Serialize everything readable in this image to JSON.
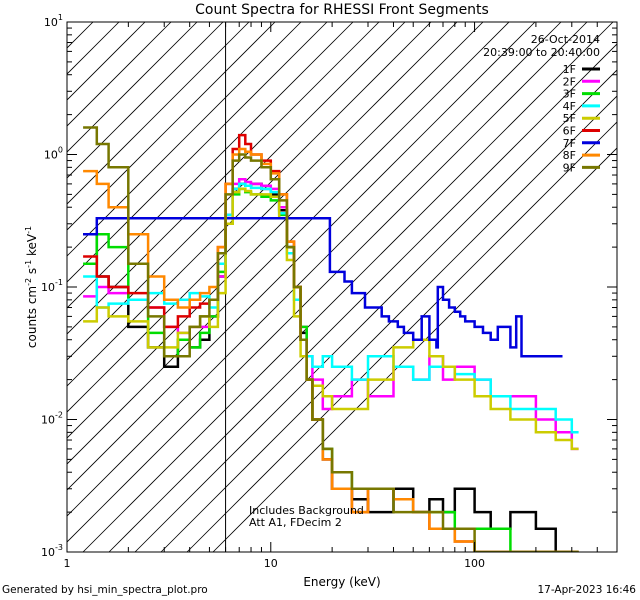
{
  "chart_data": {
    "type": "line",
    "title": "Count Spectra for RHESSI Front Segments",
    "xlabel": "Energy (keV)",
    "ylabel_parts": [
      "counts cm",
      "-2",
      " s",
      "-1",
      " keV",
      "-1"
    ],
    "xscale": "log",
    "yscale": "log",
    "xlim": [
      1,
      500
    ],
    "ylim": [
      0.001,
      10
    ],
    "x_ticks": [
      {
        "value": 1,
        "label": "1"
      },
      {
        "value": 10,
        "label": "10"
      },
      {
        "value": 100,
        "label": "100"
      }
    ],
    "y_ticks": [
      {
        "value": 0.001,
        "base": "10",
        "exp": "-3"
      },
      {
        "value": 0.01,
        "base": "10",
        "exp": "-2"
      },
      {
        "value": 0.1,
        "base": "10",
        "exp": "-1"
      },
      {
        "value": 1,
        "base": "10",
        "exp": "0"
      },
      {
        "value": 10,
        "base": "10",
        "exp": "1"
      }
    ],
    "date": "26-Oct-2014",
    "time_range": "20:39:00 to 20:40:00",
    "shaded_region": {
      "x_from": 1,
      "x_to": 6
    },
    "annotations": [
      "Includes Background",
      "Att A1, FDecim 2"
    ],
    "series": [
      {
        "name": "1F",
        "color": "#000000",
        "x": [
          1.2,
          1.4,
          1.6,
          2.0,
          2.5,
          3.0,
          3.5,
          4.0,
          4.5,
          5.0,
          5.5,
          6.0,
          6.5,
          7.0,
          7.5,
          8.0,
          9.0,
          10,
          11,
          12,
          13,
          14,
          15,
          16,
          18,
          20,
          25,
          30,
          40,
          50,
          60,
          70,
          80,
          100,
          120,
          150,
          200,
          250,
          300
        ],
        "y": [
          0.25,
          0.12,
          0.1,
          0.05,
          0.035,
          0.025,
          0.04,
          0.035,
          0.04,
          0.06,
          0.12,
          0.35,
          0.55,
          0.6,
          0.58,
          0.6,
          0.55,
          0.5,
          0.38,
          0.2,
          0.1,
          0.045,
          0.02,
          0.01,
          0.005,
          0.003,
          0.0025,
          0.002,
          0.003,
          0.002,
          0.0025,
          0.002,
          0.003,
          0.002,
          0.0015,
          0.002,
          0.0015,
          0.001,
          0.001
        ]
      },
      {
        "name": "2F",
        "color": "#ff00ff",
        "x": [
          1.2,
          1.4,
          1.6,
          2.0,
          2.5,
          3.0,
          3.5,
          4.0,
          4.5,
          5.0,
          5.5,
          6.0,
          6.5,
          7.0,
          7.5,
          8.0,
          9.0,
          10,
          11,
          12,
          13,
          14,
          15,
          16,
          18,
          20,
          25,
          30,
          40,
          50,
          60,
          70,
          80,
          100,
          120,
          150,
          200,
          250,
          300
        ],
        "y": [
          0.085,
          0.1,
          0.09,
          0.08,
          0.07,
          0.05,
          0.045,
          0.05,
          0.05,
          0.06,
          0.12,
          0.35,
          0.6,
          0.65,
          0.62,
          0.6,
          0.58,
          0.55,
          0.4,
          0.2,
          0.1,
          0.05,
          0.03,
          0.02,
          0.012,
          0.015,
          0.02,
          0.015,
          0.025,
          0.02,
          0.03,
          0.02,
          0.025,
          0.02,
          0.015,
          0.015,
          0.01,
          0.008,
          0.006
        ]
      },
      {
        "name": "3F",
        "color": "#00dd00",
        "x": [
          1.2,
          1.4,
          1.6,
          2.0,
          2.5,
          3.0,
          3.5,
          4.0,
          4.5,
          5.0,
          5.5,
          6.0,
          6.5,
          7.0,
          7.5,
          8.0,
          9.0,
          10,
          11,
          12,
          13,
          14,
          15,
          16,
          18,
          20,
          25,
          30,
          40,
          50,
          60,
          70,
          80,
          100,
          120,
          150,
          200,
          250,
          300
        ],
        "y": [
          0.15,
          0.25,
          0.2,
          0.08,
          0.045,
          0.03,
          0.04,
          0.035,
          0.045,
          0.06,
          0.13,
          0.3,
          0.5,
          0.55,
          0.52,
          0.5,
          0.48,
          0.45,
          0.35,
          0.2,
          0.1,
          0.05,
          0.02,
          0.01,
          0.006,
          0.004,
          0.003,
          0.003,
          0.0025,
          0.002,
          0.002,
          0.002,
          0.0015,
          0.0015,
          0.0015,
          0.001,
          0.001,
          0.001,
          0.001
        ]
      },
      {
        "name": "4F",
        "color": "#00ffff",
        "x": [
          1.2,
          1.4,
          1.6,
          2.0,
          2.5,
          3.0,
          3.5,
          4.0,
          4.5,
          5.0,
          5.5,
          6.0,
          6.5,
          7.0,
          7.5,
          8.0,
          9.0,
          10,
          11,
          12,
          13,
          14,
          15,
          16,
          18,
          20,
          25,
          30,
          40,
          50,
          60,
          70,
          80,
          100,
          120,
          150,
          200,
          250,
          300
        ],
        "y": [
          0.12,
          0.07,
          0.075,
          0.08,
          0.09,
          0.075,
          0.08,
          0.09,
          0.085,
          0.07,
          0.15,
          0.35,
          0.55,
          0.6,
          0.58,
          0.56,
          0.55,
          0.52,
          0.36,
          0.18,
          0.08,
          0.04,
          0.03,
          0.025,
          0.03,
          0.025,
          0.02,
          0.03,
          0.025,
          0.02,
          0.025,
          0.025,
          0.022,
          0.02,
          0.015,
          0.012,
          0.012,
          0.01,
          0.008
        ]
      },
      {
        "name": "5F",
        "color": "#cccc00",
        "x": [
          1.2,
          1.4,
          1.6,
          2.0,
          2.5,
          3.0,
          3.5,
          4.0,
          4.5,
          5.0,
          5.5,
          6.0,
          6.5,
          7.0,
          7.5,
          8.0,
          9.0,
          10,
          11,
          12,
          13,
          14,
          15,
          16,
          18,
          20,
          25,
          30,
          40,
          50,
          60,
          70,
          80,
          100,
          120,
          150,
          200,
          250,
          300
        ],
        "y": [
          0.055,
          0.07,
          0.06,
          0.055,
          0.035,
          0.035,
          0.045,
          0.05,
          0.06,
          0.05,
          0.09,
          0.3,
          0.52,
          0.55,
          0.53,
          0.5,
          0.5,
          0.48,
          0.33,
          0.16,
          0.06,
          0.03,
          0.02,
          0.018,
          0.015,
          0.012,
          0.012,
          0.02,
          0.035,
          0.04,
          0.03,
          0.025,
          0.02,
          0.015,
          0.012,
          0.01,
          0.008,
          0.007,
          0.006
        ]
      },
      {
        "name": "6F",
        "color": "#dd0000",
        "x": [
          1.2,
          1.4,
          1.6,
          2.0,
          2.5,
          3.0,
          3.5,
          4.0,
          4.5,
          5.0,
          5.5,
          6.0,
          6.5,
          7.0,
          7.5,
          8.0,
          9.0,
          10,
          11,
          12,
          13,
          14,
          15,
          16,
          18,
          20,
          25,
          30,
          40,
          50,
          60,
          70,
          80,
          100,
          120,
          150,
          200,
          250,
          300
        ],
        "y": [
          0.17,
          0.12,
          0.1,
          0.09,
          0.07,
          0.05,
          0.06,
          0.07,
          0.075,
          0.08,
          0.2,
          0.6,
          1.1,
          1.4,
          1.2,
          1.0,
          0.9,
          0.75,
          0.5,
          0.22,
          0.1,
          0.04,
          0.02,
          0.01,
          0.005,
          0.003,
          0.002,
          0.003,
          0.0025,
          0.002,
          0.0015,
          0.0015,
          0.0012,
          0.001,
          0.001,
          0.001,
          0.001,
          0.001,
          0.001
        ]
      },
      {
        "name": "7F",
        "color": "#0000dd",
        "x": [
          1.2,
          1.4,
          1.6,
          19.5,
          23,
          25,
          29,
          32,
          35,
          38,
          42,
          45,
          50,
          55,
          60,
          65,
          66,
          70,
          75,
          80,
          85,
          90,
          100,
          110,
          120,
          130,
          150,
          160,
          170,
          200,
          250
        ],
        "y": [
          0.25,
          0.33,
          0.33,
          0.13,
          0.11,
          0.09,
          0.07,
          0.07,
          0.06,
          0.055,
          0.05,
          0.045,
          0.04,
          0.06,
          0.04,
          0.035,
          0.1,
          0.08,
          0.07,
          0.065,
          0.06,
          0.055,
          0.05,
          0.045,
          0.04,
          0.05,
          0.035,
          0.06,
          0.03,
          0.03,
          0.03
        ]
      },
      {
        "name": "8F",
        "color": "#ff8800",
        "x": [
          1.2,
          1.4,
          1.6,
          2.0,
          2.5,
          3.0,
          3.5,
          4.0,
          4.5,
          5.0,
          5.5,
          6.0,
          6.5,
          7.0,
          7.5,
          8.0,
          9.0,
          10,
          11,
          12,
          13,
          14,
          15,
          16,
          18,
          20,
          25,
          30,
          40,
          50,
          60,
          70,
          80,
          100,
          120,
          150,
          200,
          250,
          300
        ],
        "y": [
          0.75,
          0.6,
          0.4,
          0.25,
          0.12,
          0.08,
          0.07,
          0.08,
          0.09,
          0.1,
          0.2,
          0.6,
          1.0,
          1.1,
          1.05,
          1.0,
          0.85,
          0.72,
          0.5,
          0.22,
          0.1,
          0.04,
          0.02,
          0.01,
          0.005,
          0.003,
          0.002,
          0.003,
          0.0025,
          0.002,
          0.0015,
          0.0015,
          0.0012,
          0.001,
          0.001,
          0.001,
          0.001,
          0.001,
          0.001
        ]
      },
      {
        "name": "9F",
        "color": "#777700",
        "x": [
          1.2,
          1.4,
          1.6,
          2.0,
          2.5,
          3.0,
          3.5,
          4.0,
          4.5,
          5.0,
          5.5,
          6.0,
          6.5,
          7.0,
          7.5,
          8.0,
          9.0,
          10,
          11,
          12,
          13,
          14,
          15,
          16,
          18,
          20,
          25,
          30,
          40,
          50,
          60,
          70,
          80,
          100,
          120,
          150,
          200,
          250,
          300
        ],
        "y": [
          1.6,
          1.2,
          0.8,
          0.15,
          0.06,
          0.03,
          0.03,
          0.05,
          0.06,
          0.08,
          0.18,
          0.5,
          0.9,
          1.0,
          0.95,
          0.9,
          0.8,
          0.65,
          0.45,
          0.2,
          0.1,
          0.04,
          0.02,
          0.01,
          0.006,
          0.004,
          0.003,
          0.003,
          0.002,
          0.002,
          0.002,
          0.0015,
          0.0015,
          0.001,
          0.001,
          0.001,
          0.001,
          0.001,
          0.001
        ]
      }
    ]
  },
  "footer": {
    "left": "Generated by hsi_min_spectra_plot.pro",
    "right": "17-Apr-2023 16:46"
  }
}
